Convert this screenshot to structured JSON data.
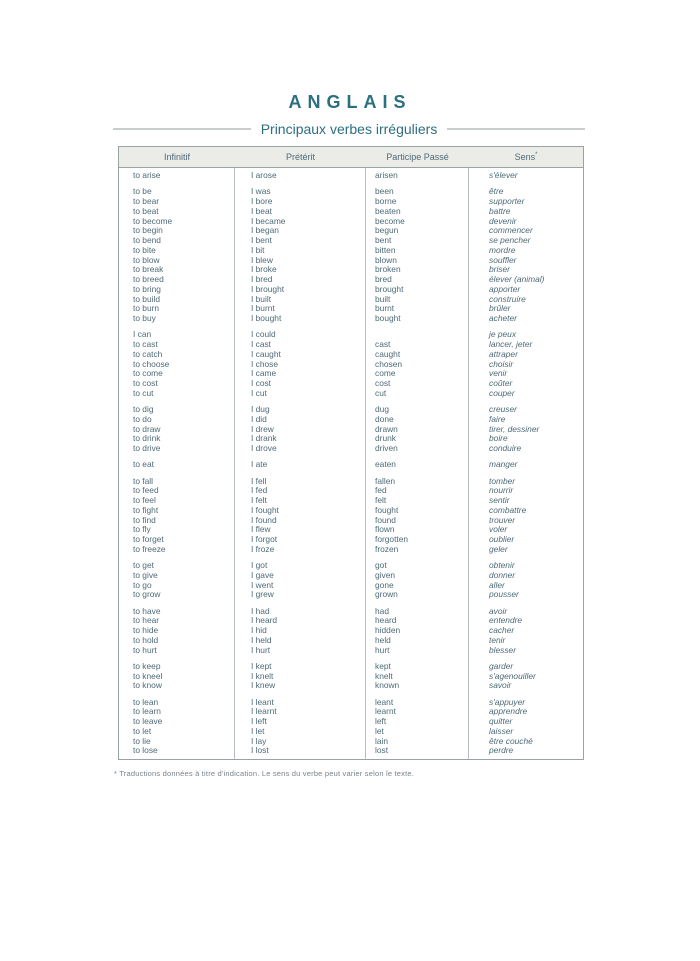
{
  "page": {
    "title": "ANGLAIS",
    "subtitle": "Principaux verbes irréguliers",
    "footnote": "* Traductions données à titre d'indication. Le sens du verbe peut varier selon le texte."
  },
  "colors": {
    "accent": "#2c6f80",
    "text": "#4d6b77",
    "border": "#9aa3a4",
    "border_light": "#b7bfc0",
    "header_bg": "#ebebe8",
    "rule": "#c9cdcd",
    "footnote": "#77848d"
  },
  "table": {
    "headers": [
      {
        "key": "infinitif",
        "label": "Infinitif",
        "marker": ""
      },
      {
        "key": "preterit",
        "label": "Prétérit",
        "marker": ""
      },
      {
        "key": "participe-passe",
        "label": "Participe Passé",
        "marker": ""
      },
      {
        "key": "sens",
        "label": "Sens",
        "marker": "*"
      }
    ],
    "groups": [
      [
        [
          "to arise",
          "I arose",
          "arisen",
          "s'élever"
        ]
      ],
      [
        [
          "to be",
          "I was",
          "been",
          "être"
        ],
        [
          "to bear",
          "I bore",
          "borne",
          "supporter"
        ],
        [
          "to beat",
          "I beat",
          "beaten",
          "battre"
        ],
        [
          "to become",
          "I became",
          "become",
          "devenir"
        ],
        [
          "to begin",
          "I began",
          "begun",
          "commencer"
        ],
        [
          "to bend",
          "I bent",
          "bent",
          "se pencher"
        ],
        [
          "to bite",
          "I bit",
          "bitten",
          "mordre"
        ],
        [
          "to blow",
          "I blew",
          "blown",
          "souffler"
        ],
        [
          "to break",
          "I broke",
          "broken",
          "briser"
        ],
        [
          "to breed",
          "I bred",
          "bred",
          "élever (animal)"
        ],
        [
          "to bring",
          "I brought",
          "brought",
          "apporter"
        ],
        [
          "to build",
          "I built",
          "built",
          "construire"
        ],
        [
          "to burn",
          "I burnt",
          "burnt",
          "brûler"
        ],
        [
          "to buy",
          "I bought",
          "bought",
          "acheter"
        ]
      ],
      [
        [
          "I can",
          "I could",
          "",
          "je peux"
        ],
        [
          "to cast",
          "I cast",
          "cast",
          "lancer, jeter"
        ],
        [
          "to catch",
          "I caught",
          "caught",
          "attraper"
        ],
        [
          "to choose",
          "I chose",
          "chosen",
          "choisir"
        ],
        [
          "to come",
          "I came",
          "come",
          "venir"
        ],
        [
          "to cost",
          "I cost",
          "cost",
          "coûter"
        ],
        [
          "to cut",
          "I cut",
          "cut",
          "couper"
        ]
      ],
      [
        [
          "to dig",
          "I dug",
          "dug",
          "creuser"
        ],
        [
          "to do",
          "I did",
          "done",
          "faire"
        ],
        [
          "to draw",
          "I drew",
          "drawn",
          "tirer, dessiner"
        ],
        [
          "to drink",
          "I drank",
          "drunk",
          "boire"
        ],
        [
          "to drive",
          "I drove",
          "driven",
          "conduire"
        ]
      ],
      [
        [
          "to eat",
          "I ate",
          "eaten",
          "manger"
        ]
      ],
      [
        [
          "to fall",
          "I fell",
          "fallen",
          "tomber"
        ],
        [
          "to feed",
          "I fed",
          "fed",
          "nourrir"
        ],
        [
          "to feel",
          "I felt",
          "felt",
          "sentir"
        ],
        [
          "to fight",
          "I fought",
          "fought",
          "combattre"
        ],
        [
          "to find",
          "I found",
          "found",
          "trouver"
        ],
        [
          "to fly",
          "I flew",
          "flown",
          "voler"
        ],
        [
          "to forget",
          "I forgot",
          "forgotten",
          "oublier"
        ],
        [
          "to freeze",
          "I froze",
          "frozen",
          "geler"
        ]
      ],
      [
        [
          "to get",
          "I got",
          "got",
          "obtenir"
        ],
        [
          "to give",
          "I gave",
          "given",
          "donner"
        ],
        [
          "to go",
          "I went",
          "gone",
          "aller"
        ],
        [
          "to grow",
          "I grew",
          "grown",
          "pousser"
        ]
      ],
      [
        [
          "to have",
          "I had",
          "had",
          "avoir"
        ],
        [
          "to hear",
          "I heard",
          "heard",
          "entendre"
        ],
        [
          "to hide",
          "I hid",
          "hidden",
          "cacher"
        ],
        [
          "to hold",
          "I held",
          "held",
          "tenir"
        ],
        [
          "to hurt",
          "I hurt",
          "hurt",
          "blesser"
        ]
      ],
      [
        [
          "to keep",
          "I kept",
          "kept",
          "garder"
        ],
        [
          "to kneel",
          "I knelt",
          "knelt",
          "s'agenouiller"
        ],
        [
          "to know",
          "I knew",
          "known",
          "savoir"
        ]
      ],
      [
        [
          "to lean",
          "I leant",
          "leant",
          "s'appuyer"
        ],
        [
          "to learn",
          "I learnt",
          "learnt",
          "apprendre"
        ],
        [
          "to leave",
          "I left",
          "left",
          "quitter"
        ],
        [
          "to let",
          "I let",
          "let",
          "laisser"
        ],
        [
          "to lie",
          "I lay",
          "lain",
          "être couché"
        ],
        [
          "to lose",
          "I lost",
          "lost",
          "perdre"
        ]
      ]
    ]
  }
}
